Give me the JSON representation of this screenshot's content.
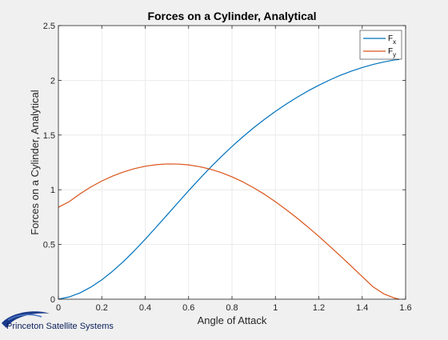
{
  "chart_data": {
    "type": "line",
    "title": "Forces on a Cylinder, Analytical",
    "xlabel": "Angle of Attack",
    "ylabel": "Forces on a Cylinder, Analytical",
    "xlim": [
      0,
      1.6
    ],
    "ylim": [
      0,
      2.5
    ],
    "xticks": [
      "0",
      "0.2",
      "0.4",
      "0.6",
      "0.8",
      "1",
      "1.2",
      "1.4",
      "1.6"
    ],
    "yticks": [
      "0",
      "0.5",
      "1",
      "1.5",
      "2",
      "2.5"
    ],
    "grid": true,
    "legend_position": "top-right",
    "x": [
      0,
      0.05,
      0.1,
      0.15,
      0.2,
      0.25,
      0.3,
      0.35,
      0.4,
      0.45,
      0.5,
      0.55,
      0.6,
      0.65,
      0.7,
      0.75,
      0.8,
      0.85,
      0.9,
      0.95,
      1.0,
      1.05,
      1.1,
      1.15,
      1.2,
      1.25,
      1.3,
      1.35,
      1.4,
      1.45,
      1.5,
      1.55,
      1.5708
    ],
    "series": [
      {
        "name": "F",
        "subscript": "x",
        "color": "#0072BD",
        "values": [
          0.0,
          0.021,
          0.058,
          0.111,
          0.177,
          0.256,
          0.345,
          0.443,
          0.548,
          0.657,
          0.768,
          0.88,
          0.991,
          1.099,
          1.203,
          1.302,
          1.396,
          1.484,
          1.567,
          1.644,
          1.716,
          1.783,
          1.845,
          1.903,
          1.955,
          2.003,
          2.046,
          2.084,
          2.117,
          2.145,
          2.168,
          2.187,
          2.19
        ]
      },
      {
        "name": "F",
        "subscript": "y",
        "color": "#D95319",
        "values": [
          0.84,
          0.892,
          0.963,
          1.026,
          1.08,
          1.125,
          1.163,
          1.193,
          1.215,
          1.229,
          1.236,
          1.235,
          1.227,
          1.211,
          1.188,
          1.157,
          1.118,
          1.072,
          1.018,
          0.958,
          0.891,
          0.818,
          0.741,
          0.659,
          0.574,
          0.485,
          0.394,
          0.301,
          0.207,
          0.113,
          0.048,
          0.01,
          0.0
        ]
      }
    ]
  },
  "branding": {
    "company": "Princeton Satellite Systems"
  }
}
